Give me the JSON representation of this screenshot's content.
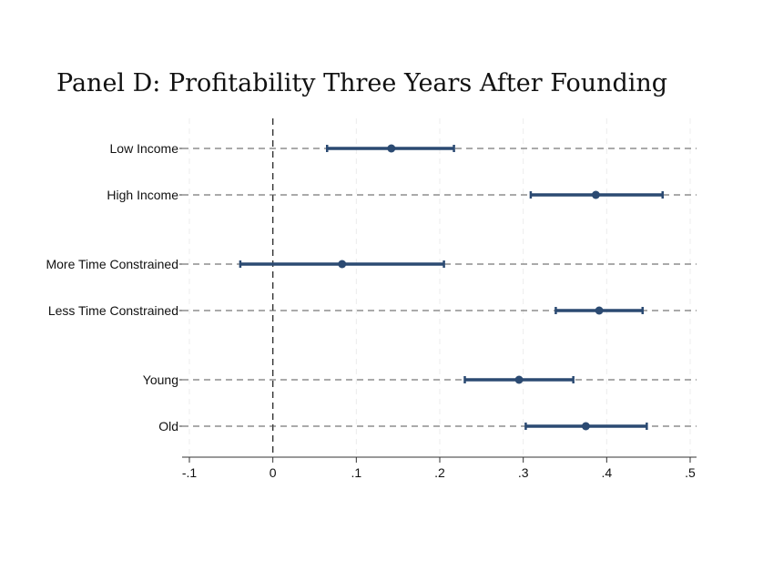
{
  "chart_data": {
    "type": "scatter",
    "subtype": "coefficient-plot-with-confidence-intervals",
    "title": "Panel D: Profitability Three Years After Founding",
    "xlabel": "",
    "ylabel": "",
    "xlim": [
      -0.1,
      0.5
    ],
    "x_ticks": [
      {
        "value": -0.1,
        "label": "-.1"
      },
      {
        "value": 0,
        "label": "0"
      },
      {
        "value": 0.1,
        "label": ".1"
      },
      {
        "value": 0.2,
        "label": ".2"
      },
      {
        "value": 0.3,
        "label": ".3"
      },
      {
        "value": 0.4,
        "label": ".4"
      },
      {
        "value": 0.5,
        "label": ".5"
      }
    ],
    "reference_line_x": 0,
    "grid": true,
    "series_color": "#2b4a72",
    "groups": [
      [
        {
          "label": "Low Income",
          "estimate": 0.142,
          "ci_low": 0.065,
          "ci_high": 0.217
        },
        {
          "label": "High Income",
          "estimate": 0.387,
          "ci_low": 0.309,
          "ci_high": 0.467
        }
      ],
      [
        {
          "label": "More Time Constrained",
          "estimate": 0.083,
          "ci_low": -0.039,
          "ci_high": 0.205
        },
        {
          "label": "Less Time Constrained",
          "estimate": 0.391,
          "ci_low": 0.339,
          "ci_high": 0.443
        }
      ],
      [
        {
          "label": "Young",
          "estimate": 0.295,
          "ci_low": 0.23,
          "ci_high": 0.36
        },
        {
          "label": "Old",
          "estimate": 0.375,
          "ci_low": 0.303,
          "ci_high": 0.448
        }
      ]
    ]
  }
}
